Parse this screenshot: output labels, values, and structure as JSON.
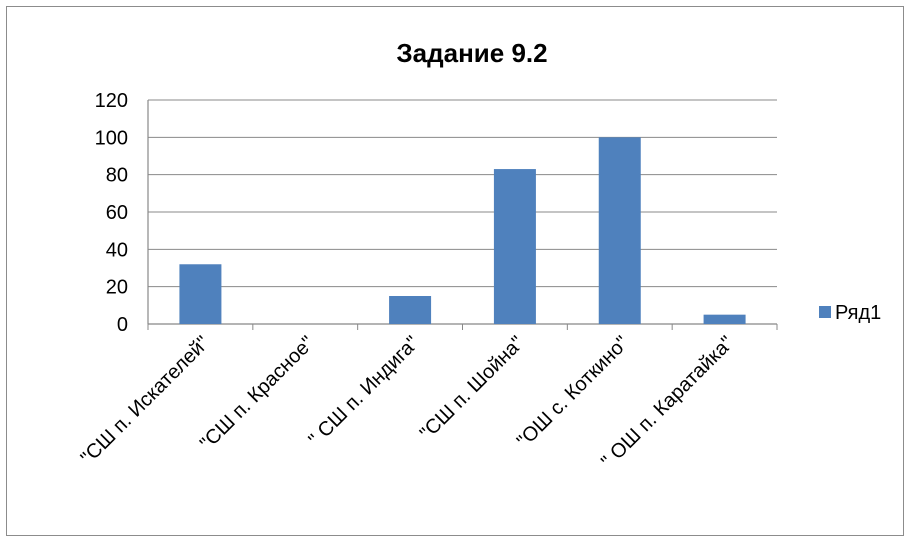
{
  "chart_data": {
    "type": "bar",
    "title": "Задание 9.2",
    "categories": [
      "\"СШ п. Искателей\"",
      "\"СШ п. Красное\"",
      "\" СШ п. Индига\"",
      "\"СШ п. Шойна\"",
      "\"ОШ с. Коткино\"",
      "\" ОШ п. Каратайка\""
    ],
    "series": [
      {
        "name": "Ряд1",
        "values": [
          32,
          0,
          15,
          83,
          100,
          5
        ],
        "color": "#4f81bd"
      }
    ],
    "ylim": [
      0,
      120
    ],
    "yticks": [
      0,
      20,
      40,
      60,
      80,
      100,
      120
    ],
    "grid": true,
    "legend_position": "right",
    "xlabel": "",
    "ylabel": ""
  }
}
